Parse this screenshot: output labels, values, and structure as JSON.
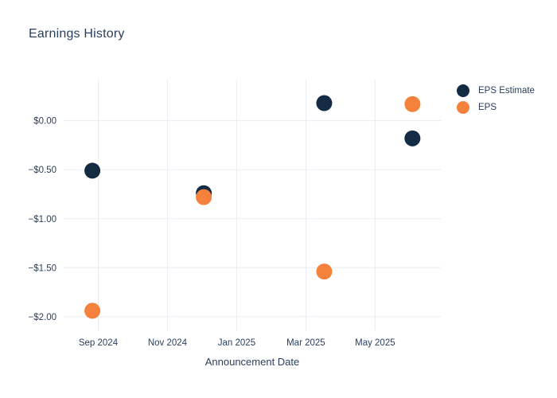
{
  "header": {
    "title": "Earnings History"
  },
  "chart_data": {
    "type": "scatter",
    "title": "Earnings History",
    "xlabel": "Announcement Date",
    "ylabel": "",
    "x_unit": "months since Sep 2024 tick",
    "xlim": [
      -1.0,
      9.9
    ],
    "ylim": [
      -2.14,
      0.42
    ],
    "x_ticks": [
      0,
      2,
      4,
      6,
      8
    ],
    "x_tick_labels": [
      "Sep 2024",
      "Nov 2024",
      "Jan 2025",
      "Mar 2025",
      "May 2025"
    ],
    "y_ticks": [
      0,
      -0.5,
      -1,
      -1.5,
      -2
    ],
    "y_tick_labels": [
      "$0.00",
      "−$0.50",
      "−$1.00",
      "−$1.50",
      "−$2.00"
    ],
    "grid": true,
    "legend_position": "top-right-outside",
    "series": [
      {
        "name": "EPS Estimate",
        "color": "#132c44",
        "x": [
          -0.17,
          3.05,
          6.53,
          9.08
        ],
        "y": [
          -0.51,
          -0.74,
          0.18,
          -0.18
        ]
      },
      {
        "name": "EPS",
        "color": "#f5823c",
        "x": [
          -0.17,
          3.05,
          6.53,
          9.08
        ],
        "y": [
          -1.94,
          -0.78,
          -1.54,
          0.17
        ]
      }
    ],
    "colors": {
      "text": "#2a3f5f",
      "grid": "#e8edf3",
      "background": "#ffffff"
    }
  }
}
